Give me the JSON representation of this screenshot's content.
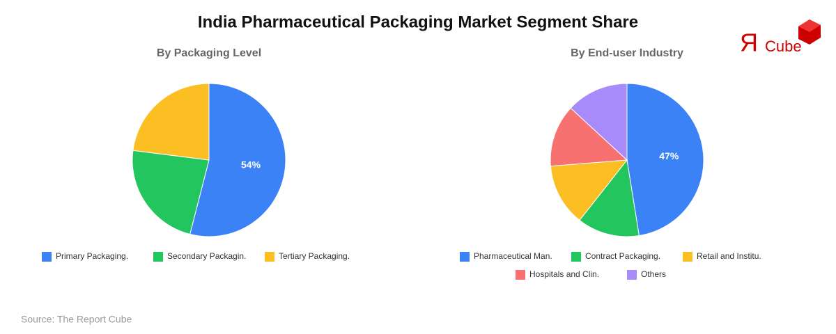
{
  "title": "India Pharmaceutical Packaging Market Segment Share",
  "logo": {
    "mark": "Я",
    "text": "Cube"
  },
  "source": "Source: The Report Cube",
  "chart_data": [
    {
      "type": "pie",
      "title": "By Packaging Level",
      "categories": [
        "Primary Packaging.",
        "Secondary Packagin.",
        "Tertiary Packaging."
      ],
      "values": [
        54,
        23,
        23
      ],
      "value_labels": [
        "54%",
        null,
        null
      ],
      "colors": [
        "#3b82f6",
        "#22c55e",
        "#fbbf24"
      ]
    },
    {
      "type": "pie",
      "title": "By End-user Industry",
      "categories": [
        "Pharmaceutical Man.",
        "Contract Packaging.",
        "Retail and Institu.",
        "Hospitals and Clin.",
        "Others"
      ],
      "values": [
        47,
        13,
        13,
        13,
        13
      ],
      "value_labels": [
        "47%",
        null,
        null,
        null,
        null
      ],
      "colors": [
        "#3b82f6",
        "#22c55e",
        "#fbbf24",
        "#f87171",
        "#a78bfa"
      ]
    }
  ]
}
